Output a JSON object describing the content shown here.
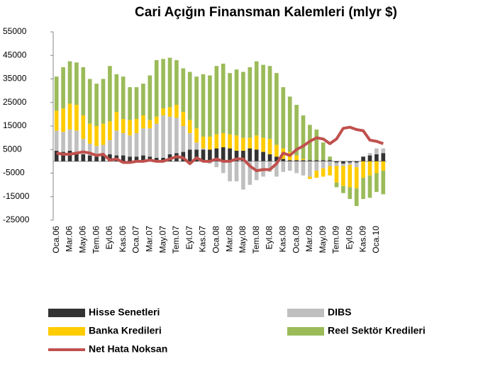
{
  "chart_data": {
    "type": "bar",
    "title": "Cari Açığın Finansman Kalemleri (mlyr $)",
    "categories": [
      "Oca.06",
      null,
      "Mar.06",
      null,
      "May.06",
      null,
      "Tem.06",
      null,
      "Eyl.06",
      null,
      "Kas.06",
      null,
      "Oca.07",
      null,
      "Mar.07",
      null,
      "May.07",
      null,
      "Tem.07",
      null,
      "Eyl.07",
      null,
      "Kas.07",
      null,
      "Oca.08",
      null,
      "Mar.08",
      null,
      "May.08",
      null,
      "Tem.08",
      null,
      "Eyl.08",
      null,
      "Kas.08",
      null,
      "Oca.09",
      null,
      "Mar.09",
      null,
      "May.09",
      null,
      "Tem.09",
      null,
      "Eyl.09",
      null,
      "Kas.09",
      null,
      "Oca.10",
      null
    ],
    "ylim": [
      -25000,
      55000
    ],
    "yticks": [
      -25000,
      -15000,
      -5000,
      5000,
      15000,
      25000,
      35000,
      45000,
      55000
    ],
    "series": [
      {
        "name": "Hisse Senetleri",
        "kind": "bar",
        "color": "#333333",
        "values": [
          4500,
          4000,
          4500,
          4000,
          3000,
          2500,
          2000,
          2500,
          3000,
          2500,
          2500,
          2000,
          2000,
          2500,
          2000,
          1500,
          1500,
          3000,
          3500,
          4000,
          5000,
          5000,
          5000,
          5000,
          5500,
          6000,
          5500,
          4500,
          4500,
          5500,
          5000,
          4000,
          3000,
          2000,
          1000,
          500,
          500,
          500,
          500,
          500,
          500,
          500,
          -500,
          -1000,
          -500,
          -500,
          2000,
          2500,
          3000,
          3500
        ]
      },
      {
        "name": "DIBS",
        "kind": "bar",
        "color": "#bfbfbf",
        "values": [
          8500,
          8500,
          9000,
          9000,
          6500,
          5000,
          4500,
          4500,
          6000,
          10500,
          9500,
          9000,
          10000,
          11500,
          12000,
          14500,
          18000,
          16000,
          15000,
          11000,
          7000,
          3000,
          500,
          -1000,
          -2500,
          -5000,
          -8500,
          -8500,
          -12000,
          -10000,
          -8000,
          -6500,
          -4500,
          -6500,
          -4500,
          -4000,
          -5000,
          -6000,
          -6500,
          -4000,
          -3000,
          -2000,
          -1500,
          -1000,
          -1000,
          -2000,
          0,
          1000,
          2500,
          2000
        ]
      },
      {
        "name": "Banka Kredileri",
        "kind": "bar",
        "color": "#ffcc00",
        "values": [
          8500,
          10000,
          11000,
          11000,
          10000,
          8500,
          8500,
          9000,
          8000,
          8000,
          6000,
          6500,
          6000,
          5500,
          3500,
          3000,
          3000,
          4000,
          5500,
          6000,
          5500,
          6000,
          5000,
          5500,
          6000,
          6000,
          6000,
          6500,
          5500,
          4500,
          6000,
          6000,
          6500,
          5000,
          4500,
          3500,
          2000,
          500,
          -1000,
          -3000,
          -3500,
          -4000,
          -7000,
          -8500,
          -9500,
          -9000,
          -7000,
          -6000,
          -5000,
          -4000
        ]
      },
      {
        "name": "Reel Sektör Kredileri",
        "kind": "bar",
        "color": "#9bbb59",
        "values": [
          14500,
          17500,
          18000,
          18000,
          20500,
          19000,
          18000,
          19000,
          23500,
          16000,
          18000,
          14000,
          13500,
          13500,
          19000,
          24000,
          21000,
          21000,
          19000,
          18500,
          20500,
          22000,
          26500,
          26000,
          29000,
          29500,
          26000,
          28000,
          28000,
          30000,
          31500,
          31000,
          31000,
          30500,
          26000,
          23500,
          21500,
          18500,
          15000,
          13000,
          7500,
          1500,
          -2000,
          -3000,
          -5000,
          -7500,
          -9000,
          -9500,
          -8000,
          -10000
        ]
      },
      {
        "name": "Net Hata Noksan",
        "kind": "line",
        "color": "#c0504d",
        "values": [
          3500,
          3000,
          3000,
          3500,
          4000,
          3500,
          2500,
          3000,
          500,
          1000,
          -500,
          -500,
          0,
          0,
          500,
          0,
          0,
          1000,
          2000,
          1500,
          -1000,
          1500,
          0,
          0,
          1000,
          0,
          0,
          1000,
          1000,
          -2000,
          -4000,
          -3500,
          -3500,
          -1000,
          3500,
          2500,
          5000,
          6500,
          8500,
          10000,
          9500,
          7500,
          9500,
          14000,
          14500,
          13500,
          13000,
          9000,
          8500,
          7500
        ]
      }
    ]
  }
}
